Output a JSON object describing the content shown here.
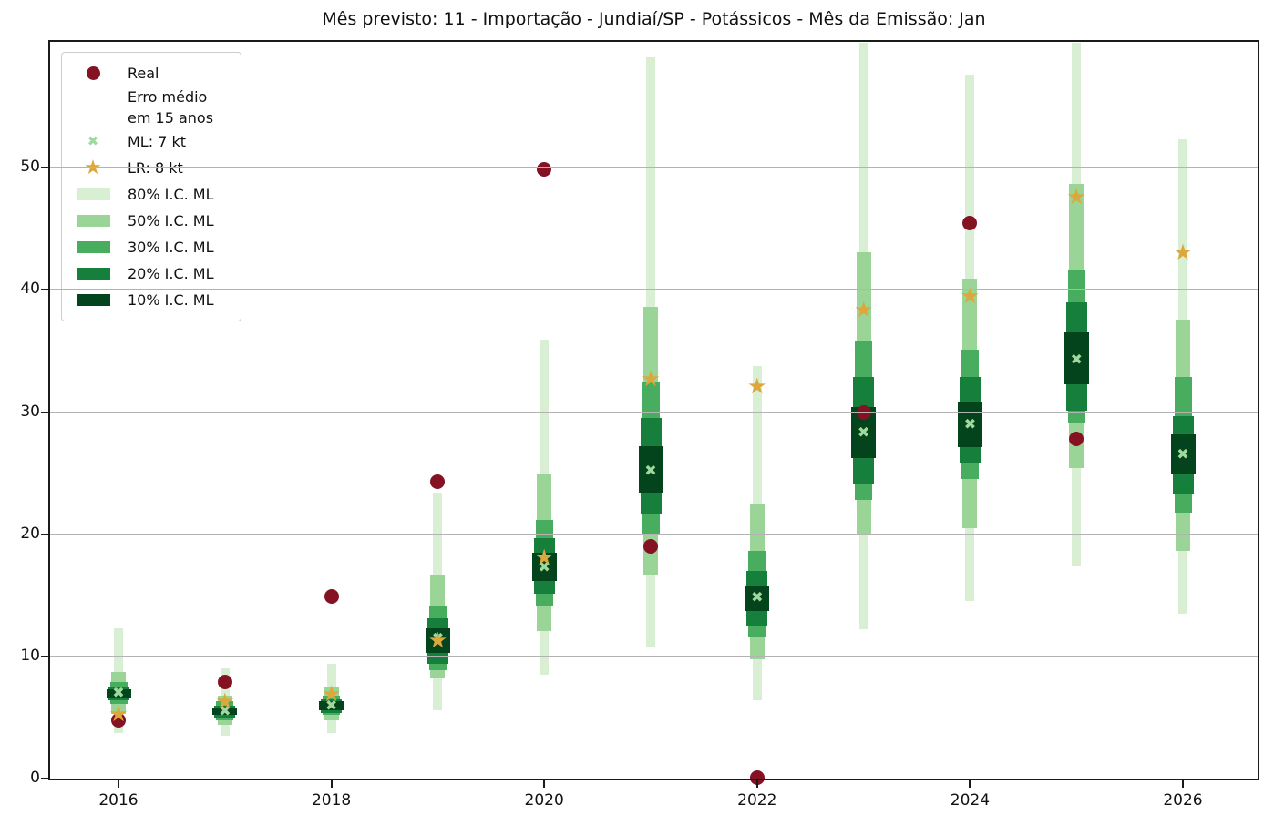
{
  "chart_data": {
    "type": "scatter",
    "subtype": "forecast-confidence-bands",
    "title": "Mês previsto: 11 - Importação - Jundiaí/SP - Potássicos - Mês da Emissão: Jan",
    "xlabel": "",
    "ylabel": "",
    "units": "kt",
    "ylim": [
      0,
      60.3
    ],
    "yticks": [
      0,
      10,
      20,
      30,
      40,
      50
    ],
    "xticks": [
      2016,
      2018,
      2020,
      2022,
      2024,
      2026
    ],
    "grid": "horizontal, drawn on top of data",
    "legend_position": "upper left",
    "legend": {
      "real_label": "Real",
      "error_note_lines": [
        "Erro médio",
        "em 15 anos"
      ],
      "ml_label": "ML: 7 kt",
      "lr_label": "LR: 8 kt",
      "band_labels": [
        "80% I.C. ML",
        "50% I.C. ML",
        "30% I.C. ML",
        "20% I.C. ML",
        "10% I.C. ML"
      ]
    },
    "colors": {
      "real": "#851222",
      "ml": "#a0d89e",
      "lr": "#dca83b",
      "ci80": "#d8efd3",
      "ci50": "#9ad597",
      "ci30": "#48ad5f",
      "ci20": "#157f3b",
      "ci10": "#03441c",
      "grid": "#b3b3b3",
      "spine": "#1a1a1a",
      "background": "#ffffff"
    },
    "points": [
      {
        "year": 2016,
        "real": 4.8,
        "ml": 7.0,
        "lr": 5.3,
        "ci80": [
          3.7,
          12.3
        ],
        "ci50": [
          5.3,
          8.7
        ],
        "ci30": [
          6.1,
          7.9
        ],
        "ci20": [
          6.4,
          7.5
        ],
        "ci10": [
          6.6,
          7.3
        ]
      },
      {
        "year": 2017,
        "real": 7.9,
        "ml": 5.5,
        "lr": 6.3,
        "ci80": [
          3.5,
          9.0
        ],
        "ci50": [
          4.4,
          6.8
        ],
        "ci30": [
          4.8,
          6.3
        ],
        "ci20": [
          5.0,
          6.0
        ],
        "ci10": [
          5.2,
          5.8
        ]
      },
      {
        "year": 2018,
        "real": 14.9,
        "ml": 6.0,
        "lr": 6.9,
        "ci80": [
          3.7,
          9.4
        ],
        "ci50": [
          4.8,
          7.5
        ],
        "ci30": [
          5.2,
          6.8
        ],
        "ci20": [
          5.4,
          6.5
        ],
        "ci10": [
          5.6,
          6.3
        ]
      },
      {
        "year": 2019,
        "real": 24.3,
        "ml": 11.5,
        "lr": 11.3,
        "ci80": [
          5.6,
          23.4
        ],
        "ci50": [
          8.2,
          16.6
        ],
        "ci30": [
          8.9,
          14.1
        ],
        "ci20": [
          9.4,
          13.1
        ],
        "ci10": [
          10.3,
          12.3
        ]
      },
      {
        "year": 2020,
        "real": 49.9,
        "ml": 17.3,
        "lr": 18.1,
        "ci80": [
          8.5,
          35.9
        ],
        "ci50": [
          12.1,
          24.9
        ],
        "ci30": [
          14.1,
          21.2
        ],
        "ci20": [
          15.1,
          19.7
        ],
        "ci10": [
          16.2,
          18.5
        ]
      },
      {
        "year": 2021,
        "real": 19.0,
        "ml": 25.2,
        "lr": 32.7,
        "ci80": [
          10.8,
          59.0
        ],
        "ci50": [
          16.7,
          38.6
        ],
        "ci30": [
          20.0,
          32.4
        ],
        "ci20": [
          21.6,
          29.5
        ],
        "ci10": [
          23.4,
          27.2
        ]
      },
      {
        "year": 2022,
        "real": 0.1,
        "ml": 14.8,
        "lr": 32.1,
        "ci80": [
          6.4,
          33.8
        ],
        "ci50": [
          9.8,
          22.4
        ],
        "ci30": [
          11.6,
          18.6
        ],
        "ci20": [
          12.5,
          17.0
        ],
        "ci10": [
          13.7,
          15.8
        ]
      },
      {
        "year": 2023,
        "real": 30.0,
        "ml": 28.3,
        "lr": 38.4,
        "ci80": [
          12.2,
          60.2
        ],
        "ci50": [
          20.0,
          43.1
        ],
        "ci30": [
          22.8,
          35.8
        ],
        "ci20": [
          24.1,
          32.9
        ],
        "ci10": [
          26.2,
          30.4
        ]
      },
      {
        "year": 2024,
        "real": 45.5,
        "ml": 29.0,
        "lr": 39.5,
        "ci80": [
          14.5,
          57.6
        ],
        "ci50": [
          20.5,
          40.9
        ],
        "ci30": [
          24.5,
          35.1
        ],
        "ci20": [
          25.9,
          32.9
        ],
        "ci10": [
          27.1,
          30.8
        ]
      },
      {
        "year": 2025,
        "real": 27.8,
        "ml": 34.3,
        "lr": 47.6,
        "ci80": [
          17.4,
          60.2
        ],
        "ci50": [
          25.4,
          48.7
        ],
        "ci30": [
          29.1,
          41.7
        ],
        "ci20": [
          30.1,
          39.0
        ],
        "ci10": [
          32.3,
          36.5
        ]
      },
      {
        "year": 2026,
        "real": null,
        "ml": 26.5,
        "lr": 43.1,
        "ci80": [
          13.5,
          52.3
        ],
        "ci50": [
          18.6,
          37.6
        ],
        "ci30": [
          21.8,
          32.9
        ],
        "ci20": [
          23.3,
          29.7
        ],
        "ci10": [
          24.9,
          28.2
        ]
      }
    ]
  }
}
